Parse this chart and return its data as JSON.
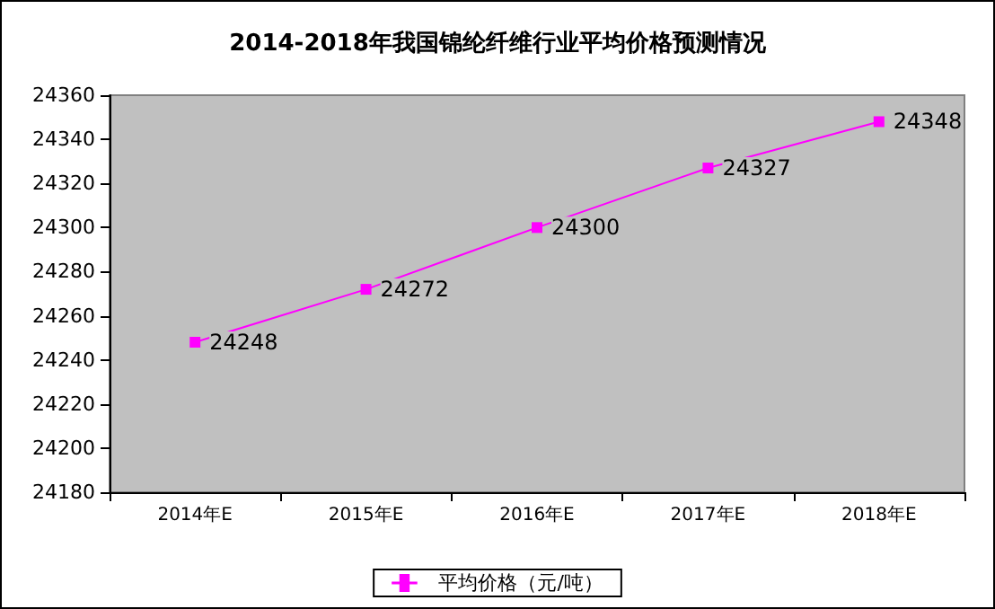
{
  "chart_data": {
    "type": "line",
    "title": "2014-2018年我国锦纶纤维行业平均价格预测情况",
    "categories": [
      "2014年E",
      "2015年E",
      "2016年E",
      "2017年E",
      "2018年E"
    ],
    "series": [
      {
        "name": "平均价格（元/吨）",
        "color": "#ff00ff",
        "values": [
          24248,
          24272,
          24300,
          24327,
          24348
        ]
      }
    ],
    "ylim": [
      24180,
      24360
    ],
    "yticks": [
      24180,
      24200,
      24220,
      24240,
      24260,
      24280,
      24300,
      24320,
      24340,
      24360
    ],
    "data_labels": true,
    "marker": "square",
    "line_style": "solid",
    "legend": "bottom",
    "grid": false
  }
}
